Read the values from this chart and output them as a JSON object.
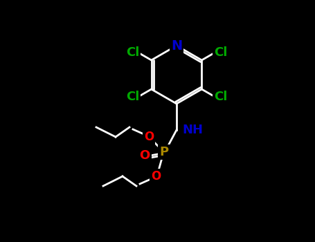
{
  "background_color": "#000000",
  "title": "",
  "atom_colors": {
    "C": "#ffffff",
    "N": "#0000cc",
    "Cl": "#00aa00",
    "O": "#ff0000",
    "P": "#aa8800",
    "H": "#ffffff"
  },
  "bond_color": "#ffffff",
  "figsize": [
    4.55,
    3.5
  ],
  "dpi": 100
}
